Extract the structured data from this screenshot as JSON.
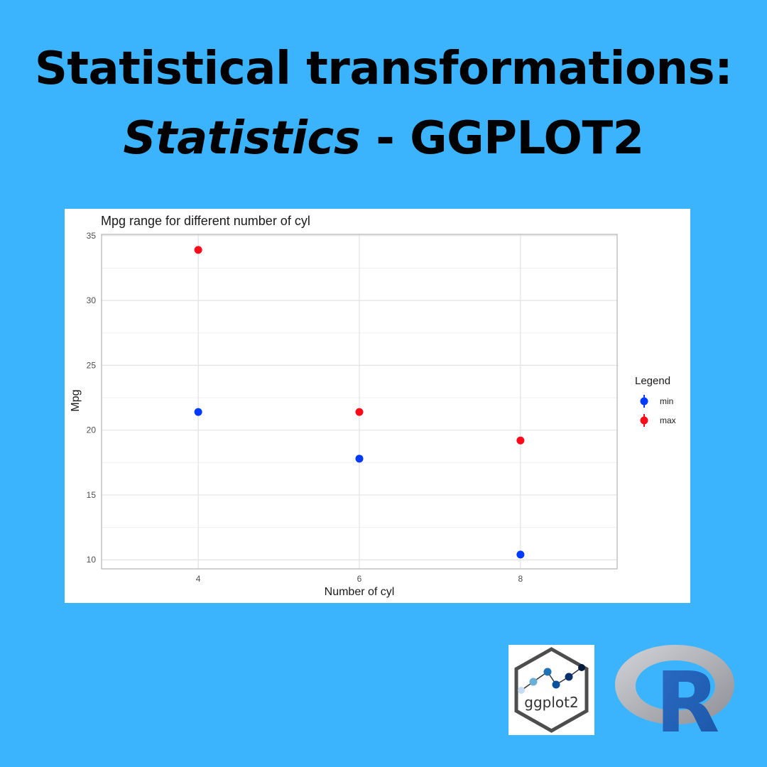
{
  "headline": {
    "line1": "Statistical transformations:",
    "line2_italic": "Statistics",
    "line2_rest": " - GGPLOT2"
  },
  "chart_data": {
    "type": "scatter",
    "title": "Mpg range for different number of cyl",
    "xlabel": "Number of cyl",
    "ylabel": "Mpg",
    "xlim": [
      2.8,
      9.2
    ],
    "ylim": [
      9.3,
      35.1
    ],
    "x_ticks": [
      4,
      6,
      8
    ],
    "y_ticks": [
      10,
      15,
      20,
      25,
      30,
      35
    ],
    "grid": true,
    "legend": {
      "title": "Legend",
      "position": "right"
    },
    "series": [
      {
        "name": "min",
        "color": "#0039ff",
        "points": [
          {
            "x": 4,
            "y": 21.4
          },
          {
            "x": 6,
            "y": 17.8
          },
          {
            "x": 8,
            "y": 10.4
          }
        ]
      },
      {
        "name": "max",
        "color": "#ff0a1a",
        "points": [
          {
            "x": 4,
            "y": 33.9
          },
          {
            "x": 6,
            "y": 21.4
          },
          {
            "x": 8,
            "y": 19.2
          }
        ]
      }
    ]
  },
  "logos": {
    "ggplot": {
      "text": "ggplot2",
      "icon": "ggplot2-hex-logo"
    },
    "r": {
      "text": "R",
      "icon": "r-language-logo"
    }
  }
}
